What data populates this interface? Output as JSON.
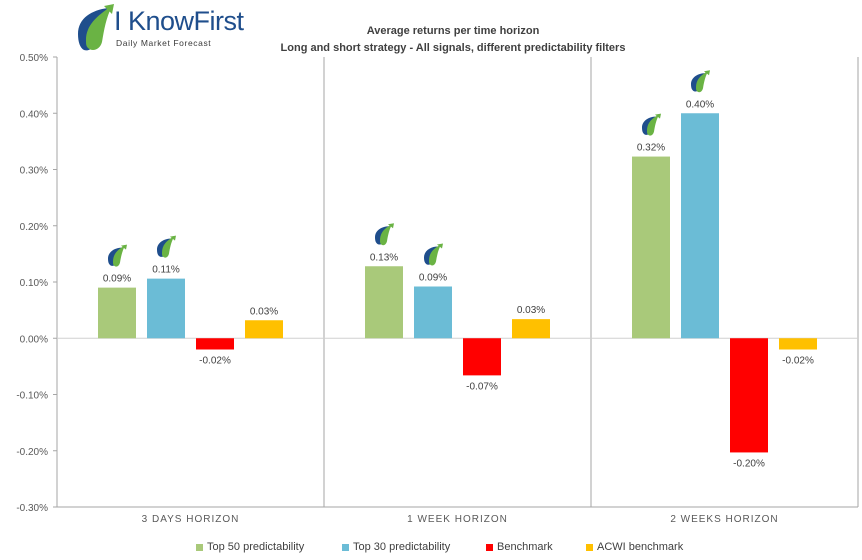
{
  "logo": {
    "name": "I KnowFirst",
    "tagline": "Daily Market Forecast"
  },
  "chart_data": {
    "type": "bar",
    "title": "Average returns per time horizon",
    "subtitle": "Long and short strategy - All signals, different predictability filters",
    "categories": [
      "3 DAYS HORIZON",
      "1 WEEK HORIZON",
      "2 WEEKS HORIZON"
    ],
    "series": [
      {
        "name": "Top 50 predictability",
        "color": "#a9c97a",
        "values": [
          0.09,
          0.128,
          0.323
        ],
        "labels": [
          "0.09%",
          "0.13%",
          "0.32%"
        ],
        "logo_marker": true
      },
      {
        "name": "Top 30 predictability",
        "color": "#6bbcd6",
        "values": [
          0.106,
          0.092,
          0.4
        ],
        "labels": [
          "0.11%",
          "0.09%",
          "0.40%"
        ],
        "logo_marker": true
      },
      {
        "name": "Benchmark",
        "color": "#ff0000",
        "values": [
          -0.02,
          -0.066,
          -0.203
        ],
        "labels": [
          "-0.02%",
          "-0.07%",
          "-0.20%"
        ],
        "logo_marker": false
      },
      {
        "name": "ACWI benchmark",
        "color": "#ffc000",
        "values": [
          0.032,
          0.034,
          -0.02
        ],
        "labels": [
          "0.03%",
          "0.03%",
          "-0.02%"
        ],
        "logo_marker": false
      }
    ],
    "ylim": [
      -0.3,
      0.5
    ],
    "yticks": [
      -0.3,
      -0.2,
      -0.1,
      0.0,
      0.1,
      0.2,
      0.3,
      0.4,
      0.5
    ],
    "ytick_labels": [
      "-0.30%",
      "-0.20%",
      "-0.10%",
      "0.00%",
      "0.10%",
      "0.20%",
      "0.30%",
      "0.40%",
      "0.50%"
    ],
    "grid": false,
    "category_separators": true,
    "legend_position": "bottom"
  }
}
